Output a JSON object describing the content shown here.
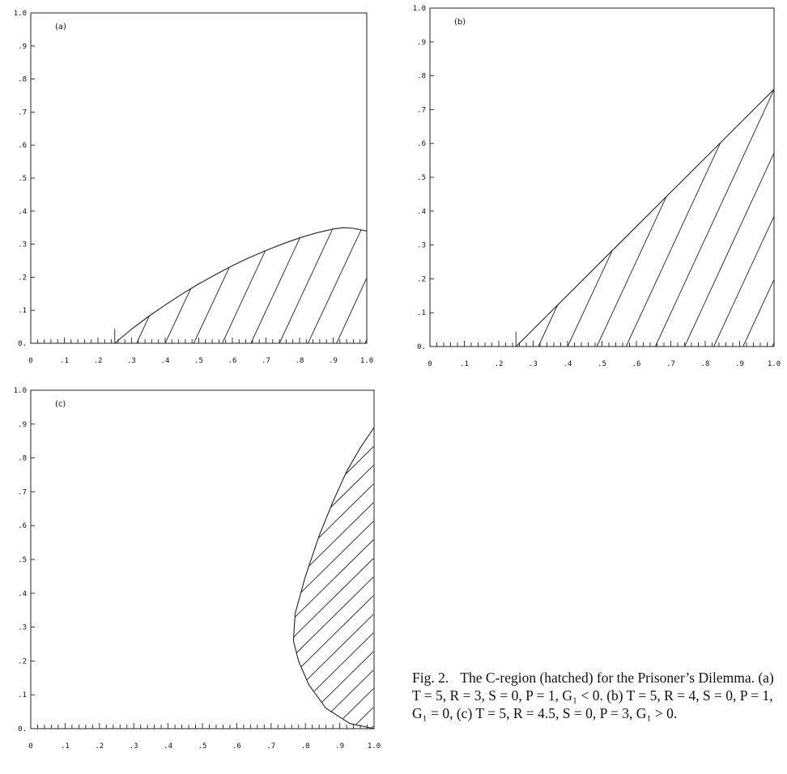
{
  "chart_data": [
    {
      "type": "area",
      "panel_label": "(a)",
      "xlim": [
        0,
        1
      ],
      "ylim": [
        0,
        1
      ],
      "x_ticks": [
        "0",
        ".1",
        ".2",
        ".3",
        ".4",
        ".5",
        ".6",
        ".7",
        ".8",
        ".9",
        "1.0"
      ],
      "y_ticks": [
        "0.",
        ".1",
        ".2",
        ".3",
        ".4",
        ".5",
        ".6",
        ".7",
        ".8",
        ".9",
        "1.0"
      ],
      "hatched": true,
      "boundary": {
        "x": [
          0.25,
          0.3,
          0.35,
          0.4,
          0.45,
          0.5,
          0.55,
          0.6,
          0.65,
          0.7,
          0.75,
          0.8,
          0.85,
          0.9,
          0.93,
          0.96,
          1.0
        ],
        "y": [
          0.0,
          0.043,
          0.081,
          0.116,
          0.149,
          0.18,
          0.208,
          0.235,
          0.259,
          0.281,
          0.301,
          0.319,
          0.334,
          0.346,
          0.35,
          0.348,
          0.34
        ]
      }
    },
    {
      "type": "area",
      "panel_label": "(b)",
      "xlim": [
        0,
        1
      ],
      "ylim": [
        0,
        1
      ],
      "x_ticks": [
        "0",
        ".1",
        ".2",
        ".3",
        ".4",
        ".5",
        ".6",
        ".7",
        ".8",
        ".9",
        "1.0"
      ],
      "y_ticks": [
        "0.",
        ".1",
        ".2",
        ".3",
        ".4",
        ".5",
        ".6",
        ".7",
        ".8",
        ".9",
        "1.0"
      ],
      "hatched": true,
      "boundary": {
        "x": [
          0.25,
          1.0
        ],
        "y": [
          0.0,
          0.76
        ]
      }
    },
    {
      "type": "area",
      "panel_label": "(c)",
      "xlim": [
        0,
        1
      ],
      "ylim": [
        0,
        1
      ],
      "x_ticks": [
        "0",
        ".1",
        ".2",
        ".3",
        ".4",
        ".5",
        ".6",
        ".7",
        ".8",
        ".9",
        "1.0"
      ],
      "y_ticks": [
        "0.",
        ".1",
        ".2",
        ".3",
        ".4",
        ".5",
        ".6",
        ".7",
        ".8",
        ".9",
        "1.0"
      ],
      "hatched": true,
      "boundary": {
        "x": [
          1.0,
          0.93,
          0.86,
          0.81,
          0.78,
          0.765,
          0.77,
          0.8,
          0.84,
          0.88,
          0.92,
          0.96,
          1.0
        ],
        "y": [
          0.0,
          0.015,
          0.06,
          0.13,
          0.2,
          0.26,
          0.34,
          0.45,
          0.57,
          0.67,
          0.76,
          0.83,
          0.89
        ]
      }
    }
  ],
  "caption": {
    "figure_number": "Fig. 2.",
    "text": "The C-region (hatched) for the Prisoner’s Dilemma. (a) T = 5, R = 3, S = 0, P = 1, G₁ < 0. (b) T = 5, R = 4, S = 0, P = 1, G₁ = 0, (c) T = 5, R = 4.5, S = 0, P = 3, G₁ > 0."
  }
}
